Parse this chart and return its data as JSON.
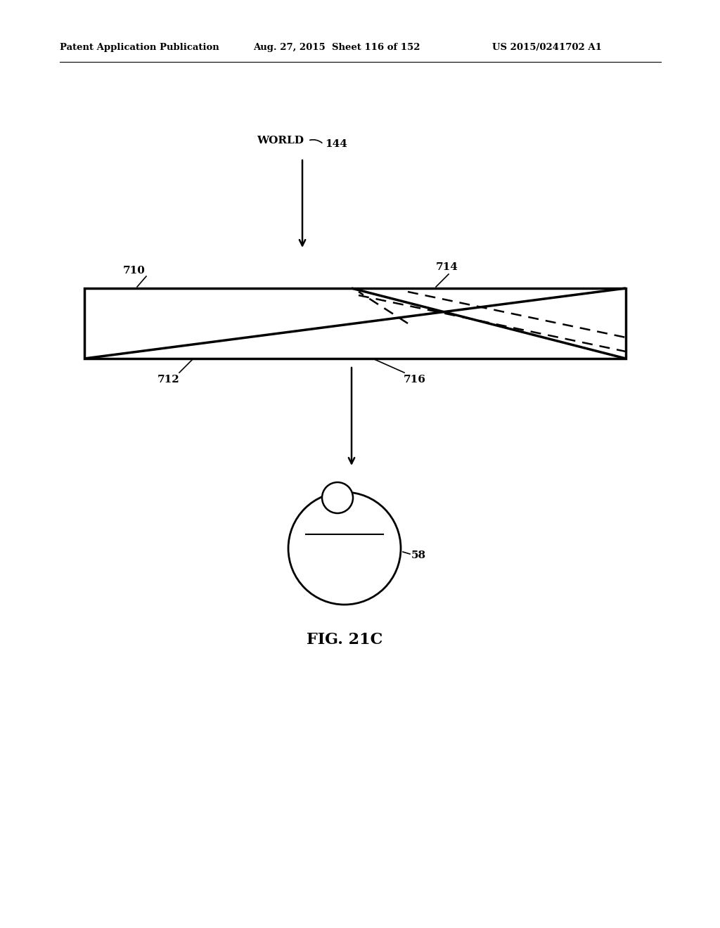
{
  "header_left": "Patent Application Publication",
  "header_mid": "Aug. 27, 2015  Sheet 116 of 152",
  "header_right": "US 2015/0241702 A1",
  "fig_caption": "FIG. 21C",
  "world_label": "WORLD",
  "label_144": "144",
  "label_710": "710",
  "label_712": "712",
  "label_714": "714",
  "label_716": "716",
  "label_58": "58",
  "bg_color": "#ffffff"
}
